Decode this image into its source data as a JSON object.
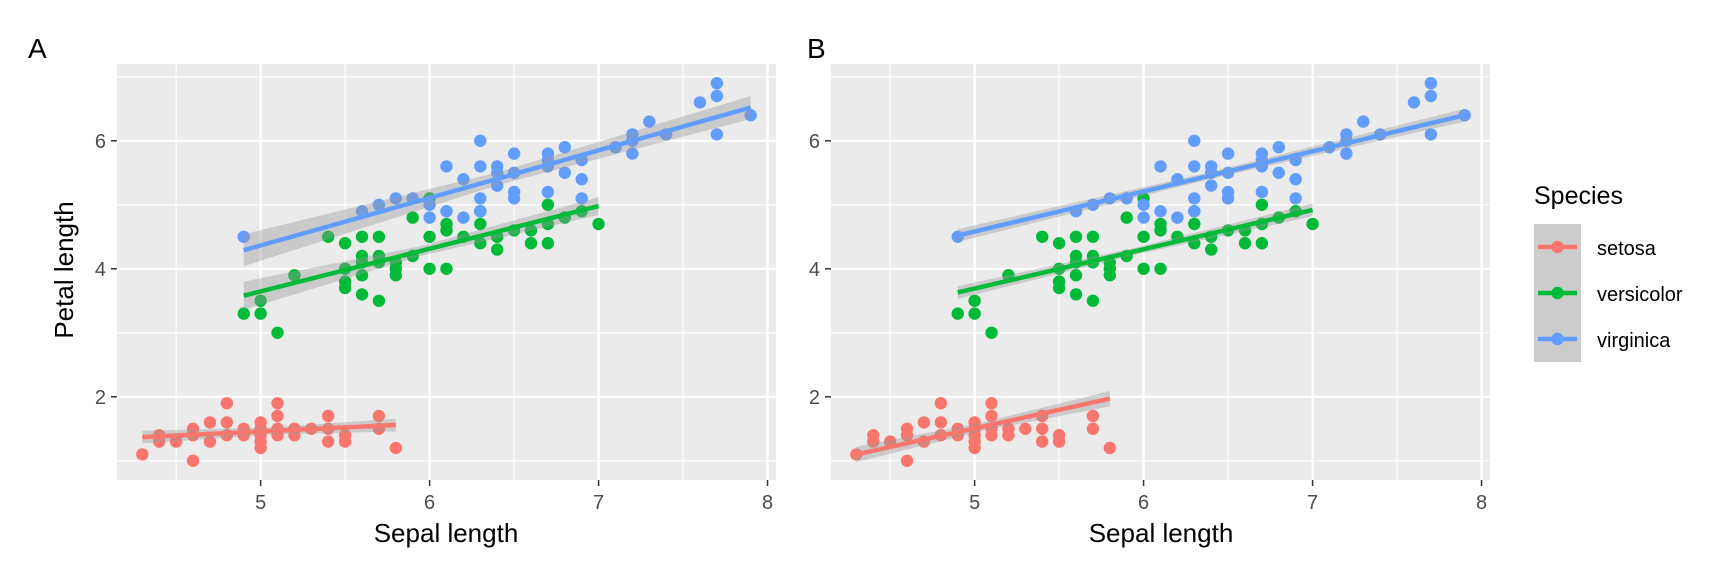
{
  "figure": {
    "tags": [
      "A",
      "B"
    ],
    "xlabel": "Sepal length",
    "ylabel": "Petal length",
    "x_ticks": [
      5,
      6,
      7,
      8
    ],
    "y_ticks": [
      2,
      4,
      6
    ],
    "x_range": [
      4.15,
      8.05
    ],
    "y_range": [
      0.7,
      7.2
    ]
  },
  "legend": {
    "title": "Species",
    "entries": [
      "setosa",
      "versicolor",
      "virginica"
    ]
  },
  "colors": {
    "setosa": "#F8766D",
    "versicolor": "#00BA38",
    "virginica": "#619CFF",
    "panel_bg": "#EBEBEB",
    "grid": "#FFFFFF",
    "band": "#999999"
  },
  "chart_data": [
    {
      "type": "scatter",
      "panel": "A",
      "xlabel": "Sepal length",
      "ylabel": "Petal length",
      "xlim": [
        4.15,
        8.05
      ],
      "ylim": [
        0.7,
        7.2
      ],
      "grid": true,
      "series": [
        {
          "name": "setosa",
          "color": "#F8766D",
          "points": [
            [
              4.3,
              1.1
            ],
            [
              4.4,
              1.4
            ],
            [
              4.4,
              1.3
            ],
            [
              4.5,
              1.3
            ],
            [
              4.6,
              1.4
            ],
            [
              4.6,
              1.5
            ],
            [
              4.6,
              1.0
            ],
            [
              4.7,
              1.3
            ],
            [
              4.7,
              1.6
            ],
            [
              4.8,
              1.4
            ],
            [
              4.8,
              1.6
            ],
            [
              4.8,
              1.9
            ],
            [
              4.9,
              1.4
            ],
            [
              4.9,
              1.5
            ],
            [
              5.0,
              1.4
            ],
            [
              5.0,
              1.5
            ],
            [
              5.0,
              1.6
            ],
            [
              5.0,
              1.2
            ],
            [
              5.0,
              1.3
            ],
            [
              5.1,
              1.4
            ],
            [
              5.1,
              1.5
            ],
            [
              5.1,
              1.7
            ],
            [
              5.1,
              1.9
            ],
            [
              5.2,
              1.5
            ],
            [
              5.2,
              1.4
            ],
            [
              5.3,
              1.5
            ],
            [
              5.4,
              1.7
            ],
            [
              5.4,
              1.5
            ],
            [
              5.4,
              1.3
            ],
            [
              5.5,
              1.4
            ],
            [
              5.5,
              1.3
            ],
            [
              5.7,
              1.7
            ],
            [
              5.7,
              1.5
            ],
            [
              5.8,
              1.2
            ]
          ],
          "fit": {
            "x": [
              4.3,
              5.8
            ],
            "y": [
              1.37,
              1.56
            ],
            "se": [
              0.1,
              0.1
            ]
          }
        },
        {
          "name": "versicolor",
          "color": "#00BA38",
          "points": [
            [
              4.9,
              3.3
            ],
            [
              5.0,
              3.5
            ],
            [
              5.0,
              3.3
            ],
            [
              5.1,
              3.0
            ],
            [
              5.2,
              3.9
            ],
            [
              5.4,
              4.5
            ],
            [
              5.5,
              4.4
            ],
            [
              5.5,
              4.0
            ],
            [
              5.5,
              3.8
            ],
            [
              5.5,
              3.7
            ],
            [
              5.6,
              4.5
            ],
            [
              5.6,
              4.2
            ],
            [
              5.6,
              4.1
            ],
            [
              5.6,
              3.9
            ],
            [
              5.6,
              3.6
            ],
            [
              5.7,
              4.5
            ],
            [
              5.7,
              4.2
            ],
            [
              5.7,
              4.1
            ],
            [
              5.7,
              3.5
            ],
            [
              5.8,
              4.1
            ],
            [
              5.8,
              4.0
            ],
            [
              5.8,
              3.9
            ],
            [
              5.9,
              4.8
            ],
            [
              5.9,
              4.2
            ],
            [
              6.0,
              5.1
            ],
            [
              6.0,
              4.5
            ],
            [
              6.0,
              4.0
            ],
            [
              6.1,
              4.7
            ],
            [
              6.1,
              4.6
            ],
            [
              6.1,
              4.0
            ],
            [
              6.2,
              4.5
            ],
            [
              6.3,
              4.9
            ],
            [
              6.3,
              4.7
            ],
            [
              6.3,
              4.4
            ],
            [
              6.4,
              4.5
            ],
            [
              6.4,
              4.3
            ],
            [
              6.5,
              4.6
            ],
            [
              6.6,
              4.6
            ],
            [
              6.6,
              4.4
            ],
            [
              6.7,
              5.0
            ],
            [
              6.7,
              4.7
            ],
            [
              6.7,
              4.4
            ],
            [
              6.8,
              4.8
            ],
            [
              6.9,
              4.9
            ],
            [
              7.0,
              4.7
            ]
          ],
          "fit": {
            "x": [
              4.9,
              7.0
            ],
            "y": [
              3.58,
              4.98
            ],
            "se": [
              0.22,
              0.14
            ]
          }
        },
        {
          "name": "virginica",
          "color": "#619CFF",
          "points": [
            [
              4.9,
              4.5
            ],
            [
              5.6,
              4.9
            ],
            [
              5.7,
              5.0
            ],
            [
              5.8,
              5.1
            ],
            [
              5.9,
              5.1
            ],
            [
              6.0,
              5.0
            ],
            [
              6.0,
              4.8
            ],
            [
              6.1,
              5.6
            ],
            [
              6.1,
              4.9
            ],
            [
              6.2,
              5.4
            ],
            [
              6.2,
              4.8
            ],
            [
              6.3,
              6.0
            ],
            [
              6.3,
              5.6
            ],
            [
              6.3,
              5.1
            ],
            [
              6.3,
              4.9
            ],
            [
              6.4,
              5.6
            ],
            [
              6.4,
              5.5
            ],
            [
              6.4,
              5.3
            ],
            [
              6.5,
              5.8
            ],
            [
              6.5,
              5.5
            ],
            [
              6.5,
              5.2
            ],
            [
              6.5,
              5.1
            ],
            [
              6.7,
              5.8
            ],
            [
              6.7,
              5.7
            ],
            [
              6.7,
              5.6
            ],
            [
              6.7,
              5.2
            ],
            [
              6.8,
              5.9
            ],
            [
              6.8,
              5.5
            ],
            [
              6.9,
              5.7
            ],
            [
              6.9,
              5.4
            ],
            [
              6.9,
              5.1
            ],
            [
              7.1,
              5.9
            ],
            [
              7.2,
              6.1
            ],
            [
              7.2,
              6.0
            ],
            [
              7.2,
              5.8
            ],
            [
              7.3,
              6.3
            ],
            [
              7.4,
              6.1
            ],
            [
              7.6,
              6.6
            ],
            [
              7.7,
              6.9
            ],
            [
              7.7,
              6.7
            ],
            [
              7.7,
              6.1
            ],
            [
              7.9,
              6.4
            ]
          ],
          "fit": {
            "x": [
              4.9,
              7.9
            ],
            "y": [
              4.29,
              6.52
            ],
            "se": [
              0.25,
              0.18
            ]
          }
        }
      ]
    },
    {
      "type": "scatter",
      "panel": "B",
      "xlabel": "Sepal length",
      "ylabel": "",
      "xlim": [
        4.15,
        8.05
      ],
      "ylim": [
        0.7,
        7.2
      ],
      "grid": true,
      "series": [
        {
          "name": "setosa",
          "color": "#F8766D",
          "points": [
            [
              4.3,
              1.1
            ],
            [
              4.4,
              1.4
            ],
            [
              4.4,
              1.3
            ],
            [
              4.5,
              1.3
            ],
            [
              4.6,
              1.4
            ],
            [
              4.6,
              1.5
            ],
            [
              4.6,
              1.0
            ],
            [
              4.7,
              1.3
            ],
            [
              4.7,
              1.6
            ],
            [
              4.8,
              1.4
            ],
            [
              4.8,
              1.6
            ],
            [
              4.8,
              1.9
            ],
            [
              4.9,
              1.4
            ],
            [
              4.9,
              1.5
            ],
            [
              5.0,
              1.4
            ],
            [
              5.0,
              1.5
            ],
            [
              5.0,
              1.6
            ],
            [
              5.0,
              1.2
            ],
            [
              5.0,
              1.3
            ],
            [
              5.1,
              1.4
            ],
            [
              5.1,
              1.5
            ],
            [
              5.1,
              1.7
            ],
            [
              5.1,
              1.9
            ],
            [
              5.2,
              1.5
            ],
            [
              5.2,
              1.4
            ],
            [
              5.3,
              1.5
            ],
            [
              5.4,
              1.7
            ],
            [
              5.4,
              1.5
            ],
            [
              5.4,
              1.3
            ],
            [
              5.5,
              1.4
            ],
            [
              5.5,
              1.3
            ],
            [
              5.7,
              1.7
            ],
            [
              5.7,
              1.5
            ],
            [
              5.8,
              1.2
            ]
          ],
          "fit": {
            "x": [
              4.3,
              5.8
            ],
            "y": [
              1.1,
              1.97
            ],
            "se": [
              0.12,
              0.12
            ]
          }
        },
        {
          "name": "versicolor",
          "color": "#00BA38",
          "points": [
            [
              4.9,
              3.3
            ],
            [
              5.0,
              3.5
            ],
            [
              5.0,
              3.3
            ],
            [
              5.1,
              3.0
            ],
            [
              5.2,
              3.9
            ],
            [
              5.4,
              4.5
            ],
            [
              5.5,
              4.4
            ],
            [
              5.5,
              4.0
            ],
            [
              5.5,
              3.8
            ],
            [
              5.5,
              3.7
            ],
            [
              5.6,
              4.5
            ],
            [
              5.6,
              4.2
            ],
            [
              5.6,
              4.1
            ],
            [
              5.6,
              3.9
            ],
            [
              5.6,
              3.6
            ],
            [
              5.7,
              4.5
            ],
            [
              5.7,
              4.2
            ],
            [
              5.7,
              4.1
            ],
            [
              5.7,
              3.5
            ],
            [
              5.8,
              4.1
            ],
            [
              5.8,
              4.0
            ],
            [
              5.8,
              3.9
            ],
            [
              5.9,
              4.8
            ],
            [
              5.9,
              4.2
            ],
            [
              6.0,
              5.1
            ],
            [
              6.0,
              4.5
            ],
            [
              6.0,
              4.0
            ],
            [
              6.1,
              4.7
            ],
            [
              6.1,
              4.6
            ],
            [
              6.1,
              4.0
            ],
            [
              6.2,
              4.5
            ],
            [
              6.3,
              4.9
            ],
            [
              6.3,
              4.7
            ],
            [
              6.3,
              4.4
            ],
            [
              6.4,
              4.5
            ],
            [
              6.4,
              4.3
            ],
            [
              6.5,
              4.6
            ],
            [
              6.6,
              4.6
            ],
            [
              6.6,
              4.4
            ],
            [
              6.7,
              5.0
            ],
            [
              6.7,
              4.7
            ],
            [
              6.7,
              4.4
            ],
            [
              6.8,
              4.8
            ],
            [
              6.9,
              4.9
            ],
            [
              7.0,
              4.7
            ]
          ],
          "fit": {
            "x": [
              4.9,
              7.0
            ],
            "y": [
              3.63,
              4.92
            ],
            "se": [
              0.1,
              0.1
            ]
          }
        },
        {
          "name": "virginica",
          "color": "#619CFF",
          "points": [
            [
              4.9,
              4.5
            ],
            [
              5.6,
              4.9
            ],
            [
              5.7,
              5.0
            ],
            [
              5.8,
              5.1
            ],
            [
              5.9,
              5.1
            ],
            [
              6.0,
              5.0
            ],
            [
              6.0,
              4.8
            ],
            [
              6.1,
              5.6
            ],
            [
              6.1,
              4.9
            ],
            [
              6.2,
              5.4
            ],
            [
              6.2,
              4.8
            ],
            [
              6.3,
              6.0
            ],
            [
              6.3,
              5.6
            ],
            [
              6.3,
              5.1
            ],
            [
              6.3,
              4.9
            ],
            [
              6.4,
              5.6
            ],
            [
              6.4,
              5.5
            ],
            [
              6.4,
              5.3
            ],
            [
              6.5,
              5.8
            ],
            [
              6.5,
              5.5
            ],
            [
              6.5,
              5.2
            ],
            [
              6.5,
              5.1
            ],
            [
              6.7,
              5.8
            ],
            [
              6.7,
              5.7
            ],
            [
              6.7,
              5.6
            ],
            [
              6.7,
              5.2
            ],
            [
              6.8,
              5.9
            ],
            [
              6.8,
              5.5
            ],
            [
              6.9,
              5.7
            ],
            [
              6.9,
              5.4
            ],
            [
              6.9,
              5.1
            ],
            [
              7.1,
              5.9
            ],
            [
              7.2,
              6.1
            ],
            [
              7.2,
              6.0
            ],
            [
              7.2,
              5.8
            ],
            [
              7.3,
              6.3
            ],
            [
              7.4,
              6.1
            ],
            [
              7.6,
              6.6
            ],
            [
              7.7,
              6.9
            ],
            [
              7.7,
              6.7
            ],
            [
              7.7,
              6.1
            ],
            [
              7.9,
              6.4
            ]
          ],
          "fit": {
            "x": [
              4.9,
              7.9
            ],
            "y": [
              4.52,
              6.4
            ],
            "se": [
              0.1,
              0.1
            ]
          }
        }
      ]
    }
  ]
}
